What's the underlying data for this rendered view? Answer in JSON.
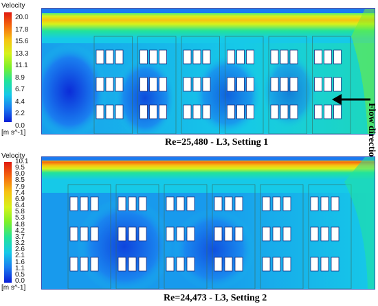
{
  "legend_title": "Velocity",
  "legend_unit": "[m s^-1]",
  "panel1": {
    "ticks": [
      "20.0",
      "17.8",
      "15.6",
      "13.3",
      "11.1",
      "8.9",
      "6.7",
      "4.4",
      "2.2",
      "0.0"
    ],
    "caption": "Re=25,480   - L3, Setting 1"
  },
  "panel2": {
    "ticks": [
      "10.1",
      "9.5",
      "9.0",
      "8.5",
      "7.9",
      "7.4",
      "6.9",
      "6.4",
      "5.8",
      "5.3",
      "4.8",
      "4.2",
      "3.7",
      "3.2",
      "2.6",
      "2.1",
      "1.6",
      "1.1",
      "0.5",
      "0.0"
    ],
    "caption": "Re=24,473   - L3, Setting 2"
  },
  "annotation": "Flow direction",
  "colors": {
    "colormap": [
      "#0a1fd6",
      "#1a7bf0",
      "#16c9e8",
      "#22e39a",
      "#7cf02a",
      "#d7f21a",
      "#f7c312",
      "#f56a0e",
      "#e01a10"
    ],
    "window_fill": "#ffffff",
    "window_stroke": "#1a2a7a",
    "arrow": "#000000"
  }
}
